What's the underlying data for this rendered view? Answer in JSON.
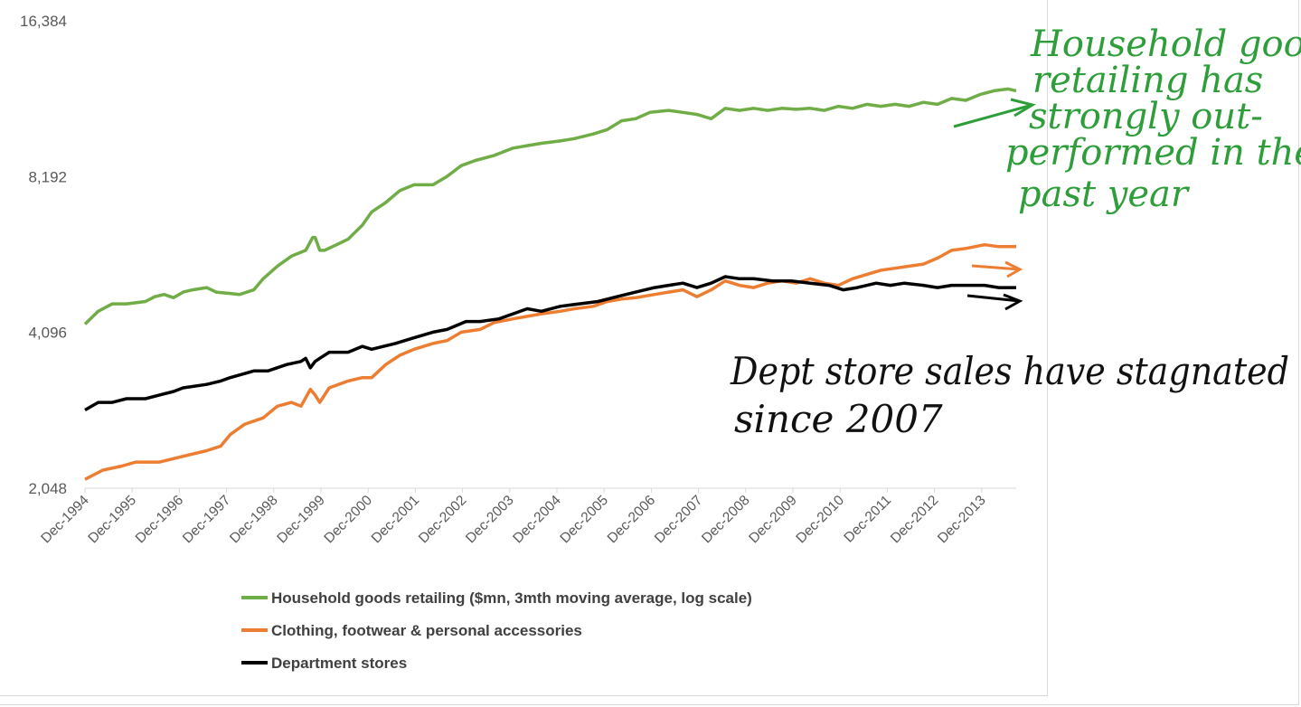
{
  "chart_data": {
    "type": "line",
    "title": "",
    "xlabel": "",
    "ylabel": "",
    "y_scale": "log2",
    "ylim": [
      2048,
      16384
    ],
    "yticks": [
      "16,384",
      "8,192",
      "4,096",
      "2,048"
    ],
    "ytick_values": [
      16384,
      8192,
      4096,
      2048
    ],
    "xticks": [
      "Dec-1994",
      "Dec-1995",
      "Dec-1996",
      "Dec-1997",
      "Dec-1998",
      "Dec-1999",
      "Dec-2000",
      "Dec-2001",
      "Dec-2002",
      "Dec-2003",
      "Dec-2004",
      "Dec-2005",
      "Dec-2006",
      "Dec-2007",
      "Dec-2008",
      "Dec-2009",
      "Dec-2010",
      "Dec-2011",
      "Dec-2012",
      "Dec-2013"
    ],
    "xlim": [
      1994.92,
      2014.67
    ],
    "grid": false,
    "legend_position": "bottom",
    "series": [
      {
        "name": "Household goods retailing ($mn, 3mth moving average, log scale)",
        "color": "#70ad47",
        "x": [
          1994.92,
          1995.2,
          1995.5,
          1995.8,
          1996.2,
          1996.4,
          1996.6,
          1996.8,
          1997.0,
          1997.2,
          1997.5,
          1997.7,
          1997.9,
          1998.2,
          1998.5,
          1998.7,
          1999.0,
          1999.3,
          1999.6,
          1999.75,
          1999.8,
          1999.9,
          2000.0,
          2000.5,
          2000.8,
          2001.0,
          2001.3,
          2001.6,
          2001.9,
          2002.3,
          2002.6,
          2002.9,
          2003.2,
          2003.6,
          2004.0,
          2004.3,
          2004.6,
          2005.0,
          2005.3,
          2005.7,
          2006.0,
          2006.3,
          2006.6,
          2006.9,
          2007.3,
          2007.6,
          2007.9,
          2008.2,
          2008.5,
          2008.8,
          2009.1,
          2009.4,
          2009.7,
          2010.0,
          2010.3,
          2010.6,
          2010.9,
          2011.2,
          2011.5,
          2011.8,
          2012.1,
          2012.4,
          2012.7,
          2013.0,
          2013.3,
          2013.6,
          2013.9,
          2014.2,
          2014.5,
          2014.67
        ],
        "values": [
          4250,
          4500,
          4650,
          4650,
          4700,
          4800,
          4850,
          4780,
          4900,
          4950,
          5000,
          4900,
          4880,
          4850,
          4950,
          5200,
          5500,
          5750,
          5900,
          6250,
          6250,
          5900,
          5900,
          6200,
          6600,
          7000,
          7300,
          7700,
          7900,
          7900,
          8200,
          8600,
          8800,
          9000,
          9300,
          9400,
          9500,
          9600,
          9700,
          9900,
          10100,
          10500,
          10600,
          10900,
          11000,
          10900,
          10800,
          10600,
          11100,
          11000,
          11100,
          11000,
          11100,
          11050,
          11100,
          11000,
          11200,
          11100,
          11300,
          11200,
          11300,
          11200,
          11400,
          11300,
          11600,
          11500,
          11800,
          12000,
          12100,
          12000
        ]
      },
      {
        "name": "Clothing, footwear & personal accessories",
        "color": "#ed7d31",
        "x": [
          1994.92,
          1995.3,
          1995.7,
          1996.0,
          1996.5,
          1997.0,
          1997.5,
          1997.8,
          1998.0,
          1998.3,
          1998.7,
          1999.0,
          1999.3,
          1999.5,
          1999.7,
          1999.8,
          1999.9,
          2000.1,
          2000.5,
          2000.8,
          2001.0,
          2001.3,
          2001.6,
          2001.9,
          2002.3,
          2002.6,
          2002.9,
          2003.3,
          2003.6,
          2004.0,
          2004.3,
          2004.6,
          2005.0,
          2005.3,
          2005.7,
          2006.0,
          2006.3,
          2006.6,
          2007.0,
          2007.3,
          2007.6,
          2007.9,
          2008.2,
          2008.5,
          2008.8,
          2009.1,
          2009.4,
          2009.7,
          2010.0,
          2010.3,
          2010.6,
          2010.9,
          2011.2,
          2011.5,
          2011.8,
          2012.1,
          2012.4,
          2012.7,
          2013.0,
          2013.3,
          2013.6,
          2014.0,
          2014.3,
          2014.67
        ],
        "values": [
          2130,
          2220,
          2260,
          2300,
          2300,
          2360,
          2420,
          2470,
          2600,
          2720,
          2800,
          2950,
          3000,
          2950,
          3180,
          3100,
          3000,
          3200,
          3300,
          3350,
          3350,
          3550,
          3700,
          3800,
          3900,
          3950,
          4100,
          4150,
          4280,
          4350,
          4400,
          4450,
          4500,
          4550,
          4600,
          4700,
          4750,
          4780,
          4850,
          4900,
          4950,
          4800,
          4950,
          5150,
          5050,
          5000,
          5100,
          5150,
          5100,
          5200,
          5100,
          5050,
          5200,
          5300,
          5400,
          5450,
          5500,
          5550,
          5700,
          5900,
          5950,
          6050,
          6000,
          6000
        ]
      },
      {
        "name": "Department stores",
        "color": "#000000",
        "x": [
          1994.92,
          1995.2,
          1995.5,
          1995.8,
          1996.2,
          1996.5,
          1996.8,
          1997.0,
          1997.5,
          1997.8,
          1998.0,
          1998.5,
          1998.8,
          1999.2,
          1999.5,
          1999.6,
          1999.7,
          1999.8,
          1999.9,
          2000.1,
          2000.5,
          2000.8,
          2001.0,
          2001.5,
          2001.9,
          2002.3,
          2002.6,
          2003.0,
          2003.3,
          2003.7,
          2004.0,
          2004.3,
          2004.6,
          2005.0,
          2005.4,
          2005.8,
          2006.2,
          2006.6,
          2007.0,
          2007.3,
          2007.6,
          2007.9,
          2008.2,
          2008.5,
          2008.8,
          2009.1,
          2009.5,
          2009.9,
          2010.3,
          2010.7,
          2011.0,
          2011.3,
          2011.7,
          2012.0,
          2012.3,
          2012.7,
          2013.0,
          2013.3,
          2013.7,
          2014.0,
          2014.3,
          2014.67
        ],
        "values": [
          2900,
          3000,
          3000,
          3050,
          3050,
          3100,
          3150,
          3200,
          3250,
          3300,
          3350,
          3450,
          3450,
          3550,
          3600,
          3650,
          3500,
          3600,
          3650,
          3750,
          3750,
          3850,
          3800,
          3900,
          4000,
          4100,
          4150,
          4300,
          4300,
          4350,
          4450,
          4550,
          4500,
          4600,
          4650,
          4700,
          4800,
          4900,
          5000,
          5050,
          5100,
          5000,
          5100,
          5250,
          5200,
          5200,
          5150,
          5150,
          5100,
          5050,
          4950,
          5000,
          5100,
          5050,
          5100,
          5050,
          5000,
          5050,
          5050,
          5050,
          5000,
          5000
        ]
      }
    ]
  },
  "annotations": {
    "green_note": [
      "Household goods",
      "retailing has",
      "strongly out-",
      "performed in the",
      "past year"
    ],
    "black_note": [
      "Dept store sales have stagnated",
      "since 2007"
    ]
  }
}
